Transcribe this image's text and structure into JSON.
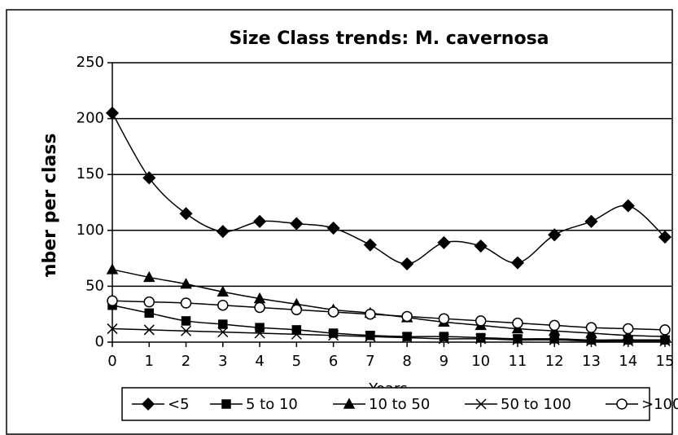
{
  "chart_data": {
    "type": "line",
    "title": "Size Class trends: M. cavernosa",
    "xlabel": "Years",
    "ylabel": "Number per class",
    "x": [
      0,
      1,
      2,
      3,
      4,
      5,
      6,
      7,
      8,
      9,
      10,
      11,
      12,
      13,
      14,
      15
    ],
    "xlim": [
      0,
      15
    ],
    "xticks": [
      0,
      1,
      2,
      3,
      4,
      5,
      6,
      7,
      8,
      9,
      10,
      11,
      12,
      13,
      14,
      15
    ],
    "ylim": [
      0,
      250
    ],
    "yticks": [
      0,
      50,
      100,
      150,
      200,
      250
    ],
    "grid": true,
    "legend": "bottom",
    "series": [
      {
        "name": "<5",
        "color": "#000000",
        "marker": "diamond",
        "values": [
          205,
          147,
          115,
          99,
          108,
          106,
          102,
          87,
          70,
          89,
          86,
          71,
          96,
          108,
          122,
          94
        ]
      },
      {
        "name": "5 to 10",
        "color": "#000000",
        "marker": "square",
        "values": [
          33,
          26,
          19,
          16,
          13,
          11,
          8,
          6,
          5,
          5,
          4,
          3,
          3,
          2,
          2,
          2
        ]
      },
      {
        "name": "10 to 50",
        "color": "#000000",
        "marker": "triangle",
        "values": [
          65,
          58,
          52,
          45,
          39,
          34,
          29,
          26,
          22,
          18,
          15,
          12,
          10,
          8,
          6,
          5
        ]
      },
      {
        "name": "50 to 100",
        "color": "#000000",
        "marker": "x",
        "values": [
          12,
          11,
          10,
          9,
          8,
          7,
          6,
          5,
          4,
          3,
          3,
          2,
          2,
          1,
          1,
          1
        ]
      },
      {
        "name": ">100",
        "color": "#000000",
        "marker": "circle",
        "values": [
          37,
          36,
          35,
          33,
          31,
          29,
          27,
          25,
          23,
          21,
          19,
          17,
          15,
          13,
          12,
          11
        ]
      }
    ]
  }
}
